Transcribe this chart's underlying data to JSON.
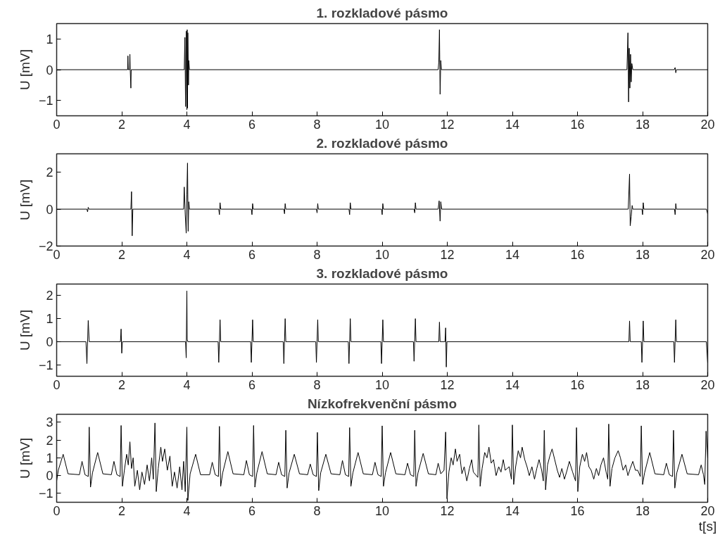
{
  "chart_data": [
    {
      "type": "line",
      "title": "1. rozkladové pásmo",
      "ylabel": "U [mV]",
      "xlim": [
        0,
        20
      ],
      "xticks": [
        0,
        2,
        4,
        6,
        8,
        10,
        12,
        14,
        16,
        18,
        20
      ],
      "ylim": [
        -1.5,
        1.5
      ],
      "yticks": [
        -1,
        0,
        1
      ],
      "grid": false,
      "series": [
        {
          "color": "#000000",
          "x": [
            0,
            2.18,
            2.19,
            2.2,
            2.24,
            2.25,
            2.26,
            2.28,
            2.29,
            2.3,
            3.92,
            3.94,
            3.96,
            3.98,
            4.0,
            4.01,
            4.02,
            4.03,
            4.05,
            4.06,
            4.08,
            11.72,
            11.74,
            11.76,
            11.78,
            11.8,
            11.82,
            17.52,
            17.55,
            17.57,
            17.59,
            17.61,
            17.63,
            17.65,
            17.67,
            17.7,
            18.97,
            19.0,
            19.02,
            19.04,
            20
          ],
          "values": [
            0,
            0,
            0.45,
            0,
            0,
            0.5,
            0,
            -0.6,
            0,
            0,
            0,
            1.05,
            -1.2,
            1.25,
            -1.3,
            1.3,
            -1.25,
            1.2,
            -0.5,
            0.3,
            0,
            0,
            0.25,
            1.3,
            -0.8,
            0.3,
            0,
            0,
            1.2,
            -1.05,
            0.7,
            -0.6,
            0.5,
            -0.4,
            0.2,
            0,
            0,
            0.07,
            -0.1,
            0,
            0
          ]
        }
      ]
    },
    {
      "type": "line",
      "title": "2. rozkladové pásmo",
      "ylabel": "U [mV]",
      "xlim": [
        0,
        20
      ],
      "xticks": [
        0,
        2,
        4,
        6,
        8,
        10,
        12,
        14,
        16,
        18,
        20
      ],
      "ylim": [
        -2,
        3
      ],
      "yticks": [
        -2,
        0,
        2
      ],
      "grid": false,
      "series": [
        {
          "color": "#000000",
          "x": [
            0,
            0.93,
            0.95,
            0.97,
            0.99,
            2.28,
            2.3,
            2.32,
            2.34,
            3.9,
            3.92,
            3.95,
            3.98,
            4.0,
            4.02,
            4.04,
            4.06,
            4.08,
            4.98,
            5.0,
            5.02,
            5.04,
            5.98,
            6.0,
            6.02,
            6.04,
            6.98,
            7.0,
            7.02,
            7.04,
            7.98,
            8.0,
            8.02,
            8.04,
            8.98,
            9.0,
            9.02,
            9.04,
            9.98,
            10.0,
            10.02,
            10.04,
            10.98,
            11.0,
            11.02,
            11.04,
            11.72,
            11.75,
            11.78,
            11.8,
            11.83,
            17.56,
            17.6,
            17.62,
            17.65,
            17.68,
            17.7,
            17.98,
            18.0,
            18.02,
            18.04,
            18.98,
            19.0,
            19.02,
            19.04,
            19.96,
            20
          ],
          "values": [
            0,
            0,
            -0.15,
            0.1,
            0,
            0,
            0.95,
            -1.45,
            0,
            0,
            1.2,
            -0.3,
            -1.3,
            0.8,
            2.5,
            -1.2,
            0.4,
            0,
            0,
            -0.3,
            0.35,
            0,
            0,
            -0.3,
            0.3,
            0,
            0,
            -0.25,
            0.3,
            0,
            0,
            -0.2,
            0.3,
            0,
            0,
            -0.3,
            0.35,
            0,
            0,
            -0.3,
            0.3,
            0,
            0,
            -0.2,
            0.35,
            0,
            0,
            0.45,
            -0.65,
            0.4,
            0,
            0,
            1.9,
            -0.9,
            -0.4,
            0.2,
            0,
            0,
            -0.3,
            0.35,
            0,
            0,
            -0.3,
            0.3,
            0,
            0,
            -0.25
          ]
        }
      ]
    },
    {
      "type": "line",
      "title": "3. rozkladové pásmo",
      "ylabel": "U [mV]",
      "xlim": [
        0,
        20
      ],
      "xticks": [
        0,
        2,
        4,
        6,
        8,
        10,
        12,
        14,
        16,
        18,
        20
      ],
      "ylim": [
        -1.5,
        2.5
      ],
      "yticks": [
        -1,
        0,
        1,
        2
      ],
      "grid": false,
      "series": [
        {
          "color": "#000000",
          "x": [
            0,
            0.9,
            0.93,
            0.97,
            1.0,
            1.96,
            1.98,
            2.0,
            2.02,
            3.96,
            3.98,
            4.0,
            4.01,
            4.03,
            4.96,
            4.98,
            5.02,
            5.04,
            5.96,
            5.98,
            6.02,
            6.04,
            6.96,
            6.98,
            7.02,
            7.04,
            7.96,
            7.98,
            8.02,
            8.04,
            8.96,
            8.98,
            9.02,
            9.04,
            9.96,
            9.98,
            10.02,
            10.04,
            10.96,
            10.98,
            11.02,
            11.04,
            11.74,
            11.76,
            11.78,
            11.93,
            11.95,
            11.97,
            11.99,
            17.58,
            17.6,
            17.62,
            17.96,
            17.98,
            18.02,
            18.04,
            18.96,
            18.98,
            19.02,
            19.04,
            19.96,
            20
          ],
          "values": [
            0,
            0,
            -0.95,
            0.92,
            0,
            0,
            0.55,
            -0.5,
            0,
            0,
            -0.7,
            2.2,
            0.1,
            0,
            0,
            -0.9,
            0.95,
            0,
            0,
            -0.9,
            0.95,
            0,
            0,
            -0.95,
            1.0,
            0,
            0,
            -0.9,
            0.95,
            0,
            0,
            -0.95,
            1.0,
            0,
            0,
            -0.95,
            0.95,
            0,
            0,
            -0.85,
            1.0,
            0,
            0,
            0.85,
            0,
            0,
            0.6,
            -1.1,
            0,
            0,
            0.9,
            0,
            0,
            -0.9,
            0.9,
            0,
            0,
            -0.9,
            0.95,
            0,
            0,
            -0.9
          ]
        }
      ]
    },
    {
      "type": "line",
      "title": "Nízkofrekvenční pásmo",
      "ylabel": "U [mV]",
      "xlabel": "t[s]",
      "xlim": [
        0,
        20
      ],
      "xticks": [
        0,
        2,
        4,
        6,
        8,
        10,
        12,
        14,
        16,
        18,
        20
      ],
      "ylim": [
        -1.5,
        3.45
      ],
      "yticks": [
        -1,
        0,
        1,
        2,
        3
      ],
      "grid": false,
      "series": [
        {
          "color": "#000000",
          "x": [
            0,
            0.05,
            0.2,
            0.35,
            0.7,
            0.78,
            0.87,
            0.97,
            1.0,
            1.04,
            1.1,
            1.26,
            1.42,
            1.68,
            1.76,
            1.85,
            1.95,
            1.98,
            2.02,
            2.08,
            2.15,
            2.2,
            2.25,
            2.3,
            2.35,
            2.4,
            2.48,
            2.55,
            2.62,
            2.7,
            2.78,
            2.85,
            2.92,
            2.97,
            3.02,
            3.06,
            3.12,
            3.2,
            3.25,
            3.32,
            3.4,
            3.48,
            3.55,
            3.62,
            3.7,
            3.78,
            3.85,
            3.9,
            3.95,
            4.0,
            4.03,
            4.1,
            4.27,
            4.42,
            4.7,
            4.78,
            4.87,
            4.97,
            5.0,
            5.04,
            5.1,
            5.26,
            5.42,
            5.75,
            5.83,
            5.92,
            6.02,
            6.05,
            6.09,
            6.15,
            6.31,
            6.47,
            6.74,
            6.82,
            6.91,
            7.01,
            7.04,
            7.08,
            7.14,
            7.3,
            7.46,
            7.71,
            7.79,
            7.88,
            7.98,
            8.01,
            8.05,
            8.11,
            8.27,
            8.43,
            8.7,
            8.78,
            8.87,
            8.97,
            9.0,
            9.04,
            9.1,
            9.26,
            9.42,
            9.7,
            9.78,
            9.87,
            9.97,
            10.0,
            10.04,
            10.1,
            10.26,
            10.42,
            10.7,
            10.78,
            10.87,
            10.97,
            11.0,
            11.04,
            11.1,
            11.26,
            11.42,
            11.65,
            11.72,
            11.8,
            11.9,
            11.95,
            11.99,
            12.05,
            12.12,
            12.18,
            12.25,
            12.3,
            12.38,
            12.45,
            12.52,
            12.6,
            12.68,
            12.75,
            12.8,
            12.94,
            12.97,
            13.01,
            13.07,
            13.15,
            13.22,
            13.28,
            13.35,
            13.42,
            13.5,
            13.58,
            13.65,
            13.72,
            13.78,
            13.9,
            13.97,
            14.0,
            14.04,
            14.1,
            14.18,
            14.25,
            14.3,
            14.38,
            14.45,
            14.52,
            14.6,
            14.68,
            14.75,
            14.82,
            14.9,
            14.95,
            14.98,
            15.02,
            15.08,
            15.15,
            15.22,
            15.3,
            15.38,
            15.45,
            15.52,
            15.6,
            15.68,
            15.75,
            15.85,
            15.94,
            15.97,
            16.01,
            16.07,
            16.15,
            16.22,
            16.28,
            16.35,
            16.42,
            16.5,
            16.58,
            16.65,
            16.72,
            16.8,
            16.88,
            16.93,
            16.96,
            17.0,
            17.06,
            17.15,
            17.25,
            17.32,
            17.4,
            17.48,
            17.55,
            17.62,
            17.7,
            17.78,
            17.85,
            17.93,
            17.96,
            18.0,
            18.06,
            18.22,
            18.38,
            18.65,
            18.73,
            18.82,
            18.92,
            18.95,
            18.99,
            19.05,
            19.21,
            19.37,
            19.72,
            19.8,
            19.87,
            19.91,
            19.95,
            20.0
          ],
          "values": [
            -0.3,
            0.3,
            1.2,
            0.1,
            0.05,
            0.8,
            0.05,
            -0.05,
            2.73,
            -0.65,
            0.15,
            1.3,
            0.1,
            0.05,
            0.8,
            0.05,
            -0.05,
            2.82,
            -0.6,
            0.3,
            1.2,
            0.6,
            1.9,
            0.4,
            1.0,
            -0.6,
            0.3,
            -0.8,
            0.2,
            -0.5,
            0.6,
            -0.3,
            1.0,
            -0.2,
            2.96,
            -0.9,
            0.4,
            1.6,
            0.8,
            1.5,
            0.3,
            1.1,
            -0.6,
            0.2,
            -0.7,
            0.5,
            -0.8,
            0.8,
            -0.9,
            2.73,
            -1.4,
            0.1,
            1.2,
            0.05,
            0.05,
            0.75,
            0.05,
            -0.05,
            2.77,
            -0.6,
            0.15,
            1.35,
            0.1,
            0.05,
            0.85,
            0.05,
            -0.05,
            2.82,
            -0.65,
            0.15,
            1.35,
            0.1,
            0.05,
            0.75,
            0.05,
            -0.05,
            2.55,
            -0.7,
            0.15,
            1.2,
            0.1,
            0.05,
            0.65,
            0.05,
            -0.05,
            2.43,
            -0.85,
            0.15,
            1.2,
            0.1,
            0.05,
            0.85,
            0.05,
            -0.05,
            2.7,
            -0.6,
            0.15,
            1.3,
            0.1,
            0.05,
            0.75,
            0.05,
            -0.05,
            2.8,
            -0.6,
            0.15,
            1.3,
            0.1,
            0.05,
            0.7,
            0.05,
            -0.05,
            2.55,
            -0.6,
            0.15,
            1.25,
            0.1,
            0.05,
            0.7,
            0.1,
            0.3,
            2.45,
            -1.3,
            0.2,
            1.0,
            0.6,
            1.5,
            0.8,
            1.2,
            0.1,
            0.5,
            -0.3,
            0.4,
            0.9,
            0.2,
            -0.1,
            2.85,
            -0.6,
            0.4,
            1.3,
            1.0,
            1.6,
            0.7,
            0.9,
            0.0,
            0.5,
            0.2,
            0.9,
            0.3,
            0.5,
            -0.2,
            2.85,
            -0.5,
            0.5,
            1.4,
            1.0,
            1.6,
            0.9,
            0.5,
            0.0,
            0.5,
            -0.2,
            0.4,
            0.9,
            0.3,
            -0.3,
            2.55,
            -0.8,
            0.6,
            1.1,
            1.5,
            0.9,
            0.3,
            -0.1,
            0.4,
            -0.2,
            0.3,
            0.8,
            0.2,
            -0.3,
            2.7,
            -0.9,
            0.5,
            1.2,
            0.8,
            1.3,
            0.5,
            0.3,
            -0.2,
            0.4,
            0.0,
            0.6,
            1.0,
            0.2,
            -0.2,
            2.9,
            -0.6,
            0.4,
            1.0,
            1.4,
            1.0,
            0.3,
            0.6,
            0.0,
            0.4,
            0.8,
            0.3,
            0.3,
            -0.05,
            2.8,
            -0.5,
            0.15,
            1.3,
            0.1,
            0.05,
            0.7,
            0.05,
            -0.05,
            2.55,
            -0.7,
            0.15,
            1.2,
            0.1,
            0.05,
            0.6,
            0.05,
            -0.5,
            2.5,
            1.0
          ]
        }
      ]
    }
  ]
}
